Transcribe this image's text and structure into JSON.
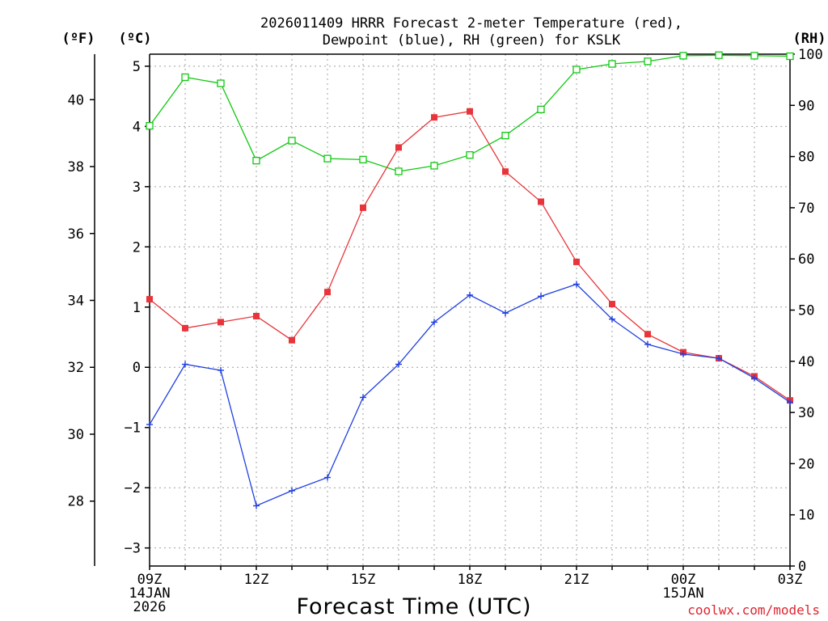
{
  "title_lines": [
    "2026011409 HRRR Forecast 2-meter Temperature (red),",
    "Dewpoint (blue), RH (green) for KSLK"
  ],
  "unit_labels": {
    "fahrenheit": "(ºF)",
    "celsius": "(ºC)",
    "rh": "(RH)"
  },
  "x_axis_title": "Forecast Time (UTC)",
  "credit": "coolwx.com/models",
  "colors": {
    "temperature": "#e8343a",
    "dewpoint": "#2040e0",
    "rh": "#10c810",
    "grid": "#a0a0a0",
    "axis": "#000000"
  },
  "chart_data": {
    "type": "line",
    "title": "2026011409 HRRR Forecast 2-meter Temperature (red), Dewpoint (blue), RH (green) for KSLK",
    "xlabel": "Forecast Time (UTC)",
    "ylabel_left": "(ºC)",
    "ylabel_right": "(RH)",
    "ylabel_far_left": "(ºF)",
    "x_hours": [
      0,
      1,
      2,
      3,
      4,
      5,
      6,
      7,
      8,
      9,
      10,
      11,
      12,
      13,
      14,
      15,
      16,
      17,
      18
    ],
    "x_tick_labels": [
      {
        "hour": 0,
        "lines": [
          "09Z",
          "14JAN",
          "2026"
        ]
      },
      {
        "hour": 3,
        "lines": [
          "12Z"
        ]
      },
      {
        "hour": 6,
        "lines": [
          "15Z"
        ]
      },
      {
        "hour": 9,
        "lines": [
          "18Z"
        ]
      },
      {
        "hour": 12,
        "lines": [
          "21Z"
        ]
      },
      {
        "hour": 15,
        "lines": [
          "00Z",
          "15JAN"
        ]
      },
      {
        "hour": 18,
        "lines": [
          "03Z"
        ]
      }
    ],
    "x_range": [
      0,
      18
    ],
    "celsius_range": [
      -3.3,
      5.2
    ],
    "celsius_ticks": [
      -3,
      -2,
      -1,
      0,
      1,
      2,
      3,
      4,
      5
    ],
    "fahrenheit_ticks": [
      28,
      30,
      32,
      34,
      36,
      38,
      40
    ],
    "rh_range": [
      0,
      100
    ],
    "rh_ticks": [
      0,
      10,
      20,
      30,
      40,
      50,
      60,
      70,
      80,
      90,
      100
    ],
    "grid": true,
    "series": [
      {
        "name": "Temperature (red)",
        "axis": "celsius",
        "marker": "filled-square",
        "values": [
          1.13,
          0.65,
          0.75,
          0.85,
          0.45,
          1.25,
          2.65,
          3.65,
          4.15,
          4.25,
          3.25,
          2.75,
          1.75,
          1.05,
          0.55,
          0.25,
          0.15,
          -0.15,
          -0.55
        ]
      },
      {
        "name": "Dewpoint (blue)",
        "axis": "celsius",
        "marker": "plus",
        "values": [
          -0.95,
          0.05,
          -0.05,
          -2.3,
          -2.05,
          -1.83,
          -0.5,
          0.05,
          0.75,
          1.2,
          0.9,
          1.18,
          1.38,
          0.8,
          0.38,
          0.22,
          0.15,
          -0.18,
          -0.58
        ]
      },
      {
        "name": "RH (green)",
        "axis": "rh",
        "marker": "open-square",
        "values": [
          86,
          95.5,
          94.3,
          79.2,
          83.1,
          79.6,
          79.4,
          77.1,
          78.2,
          80.3,
          84.1,
          89.2,
          97,
          98.1,
          98.6,
          99.7,
          99.8,
          99.7,
          99.6
        ]
      }
    ]
  }
}
